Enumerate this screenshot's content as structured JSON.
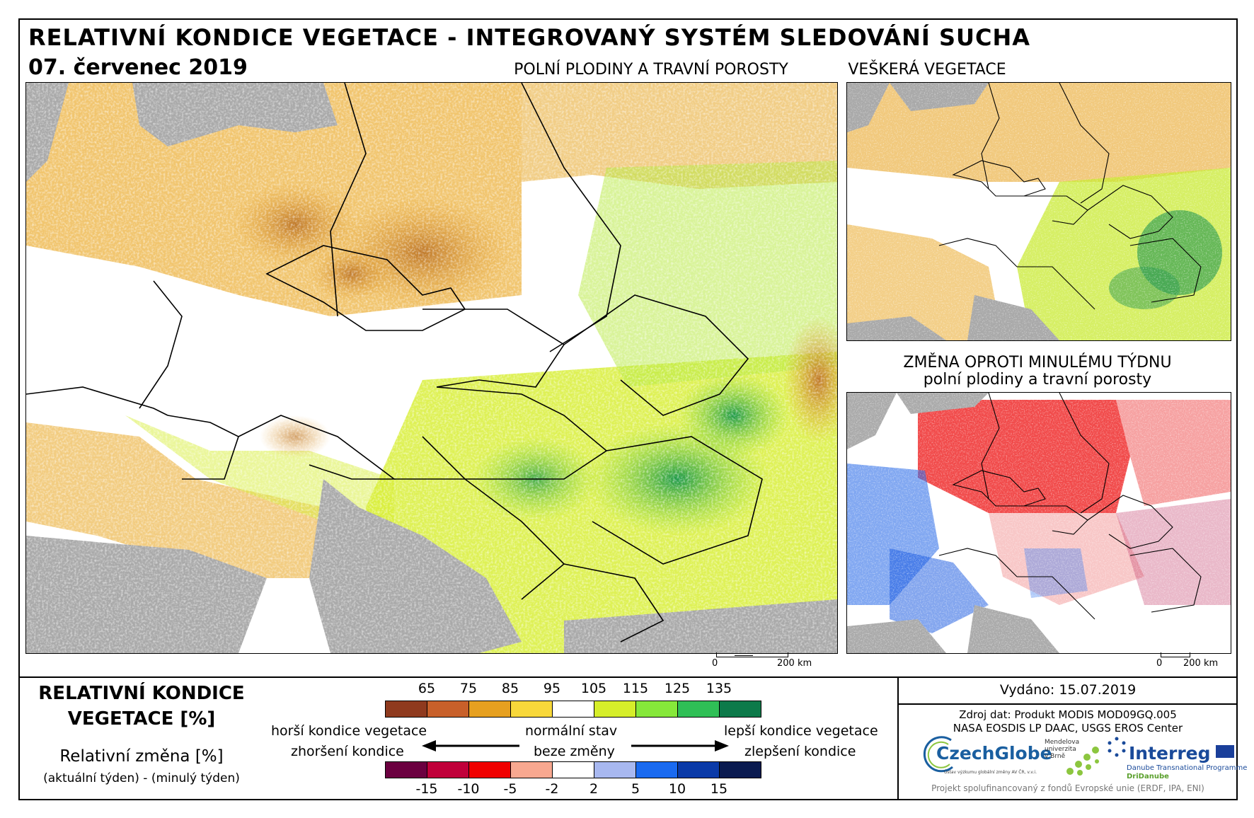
{
  "header": {
    "title": "RELATIVNÍ KONDICE VEGETACE - INTEGROVANÝ SYSTÉM SLEDOVÁNÍ SUCHA",
    "date": "07. červenec 2019",
    "main_map_caption": "POLNÍ PLODINY A TRAVNÍ POROSTY",
    "top_right_caption": "VEŠKERÁ VEGETACE",
    "bottom_right_caption_1": "ZMĚNA OPROTI MINULÉMU TÝDNU",
    "bottom_right_caption_2": "polní plodiny a travní porosty"
  },
  "scalebars": {
    "main": {
      "zero": "0",
      "value": "200 km"
    },
    "change": {
      "zero": "0",
      "value": "200 km"
    }
  },
  "legend": {
    "title_1": "RELATIVNÍ KONDICE",
    "title_2": "VEGETACE [%]",
    "change_title": "Relativní změna [%]",
    "change_subtitle": "(aktuální týden) - (minulý týden)",
    "condition_ticks": [
      "65",
      "75",
      "85",
      "95",
      "105",
      "115",
      "125",
      "135"
    ],
    "condition_colors": [
      "#8f3a1e",
      "#c8602a",
      "#e6a020",
      "#f8d83a",
      "#ffffff",
      "#d6ee2a",
      "#86e83a",
      "#2fbf56",
      "#0d7a4a"
    ],
    "change_ticks": [
      "-15",
      "-10",
      "-5",
      "-2",
      "2",
      "5",
      "10",
      "15"
    ],
    "change_colors": [
      "#6b0040",
      "#c0003a",
      "#f00000",
      "#f8a890",
      "#ffffff",
      "#a8b8f0",
      "#1a6af0",
      "#0a3aa8",
      "#0a1a50"
    ],
    "worse_1": "horší kondice vegetace",
    "worse_2": "zhoršení kondice",
    "normal_1": "normální stav",
    "normal_2": "beze změny",
    "better_1": "lepší kondice vegetace",
    "better_2": "zlepšení kondice"
  },
  "info": {
    "issued": "Vydáno: 15.07.2019",
    "source_1": "Zdroj dat: Produkt MODIS MOD09GQ.005",
    "source_2": "NASA EOSDIS LP DAAC, USGS EROS Center",
    "czechglobe": "CzechGlobe",
    "czechglobe_sub": "Ústav výzkumu globální změny AV ČR, v.v.i.",
    "mendel_1": "Mendelova",
    "mendel_2": "univerzita",
    "mendel_3": "v Brně",
    "interreg": "Interreg",
    "interreg_sub": "Danube Transnational Programme",
    "dridanube": "DriDanube",
    "footer": "Projekt spolufinancovaný z fondů Evropské unie (ERDF, IPA, ENI)"
  }
}
